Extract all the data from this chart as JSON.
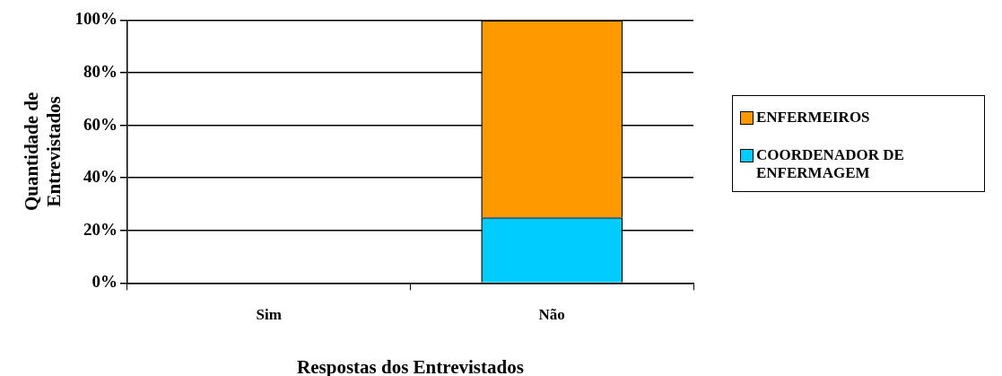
{
  "chart_data": {
    "type": "bar",
    "stacked": true,
    "xlabel": "Respostas dos Entrevistados",
    "ylabel": "Quantidade de Entrevistados",
    "categories": [
      "Sim",
      "Não"
    ],
    "series": [
      {
        "name": "COORDENADOR DE ENFERMAGEM",
        "color": "#00ccff",
        "values": [
          0,
          25
        ]
      },
      {
        "name": "ENFERMEIROS",
        "color": "#ff9900",
        "values": [
          0,
          75
        ]
      }
    ],
    "ylim": [
      0,
      100
    ],
    "yticks": [
      {
        "value": 0,
        "label": "0%"
      },
      {
        "value": 20,
        "label": "20%"
      },
      {
        "value": 40,
        "label": "40%"
      },
      {
        "value": 60,
        "label": "60%"
      },
      {
        "value": 80,
        "label": "80%"
      },
      {
        "value": 100,
        "label": "100%"
      }
    ],
    "grid": "y",
    "legend": "right"
  }
}
